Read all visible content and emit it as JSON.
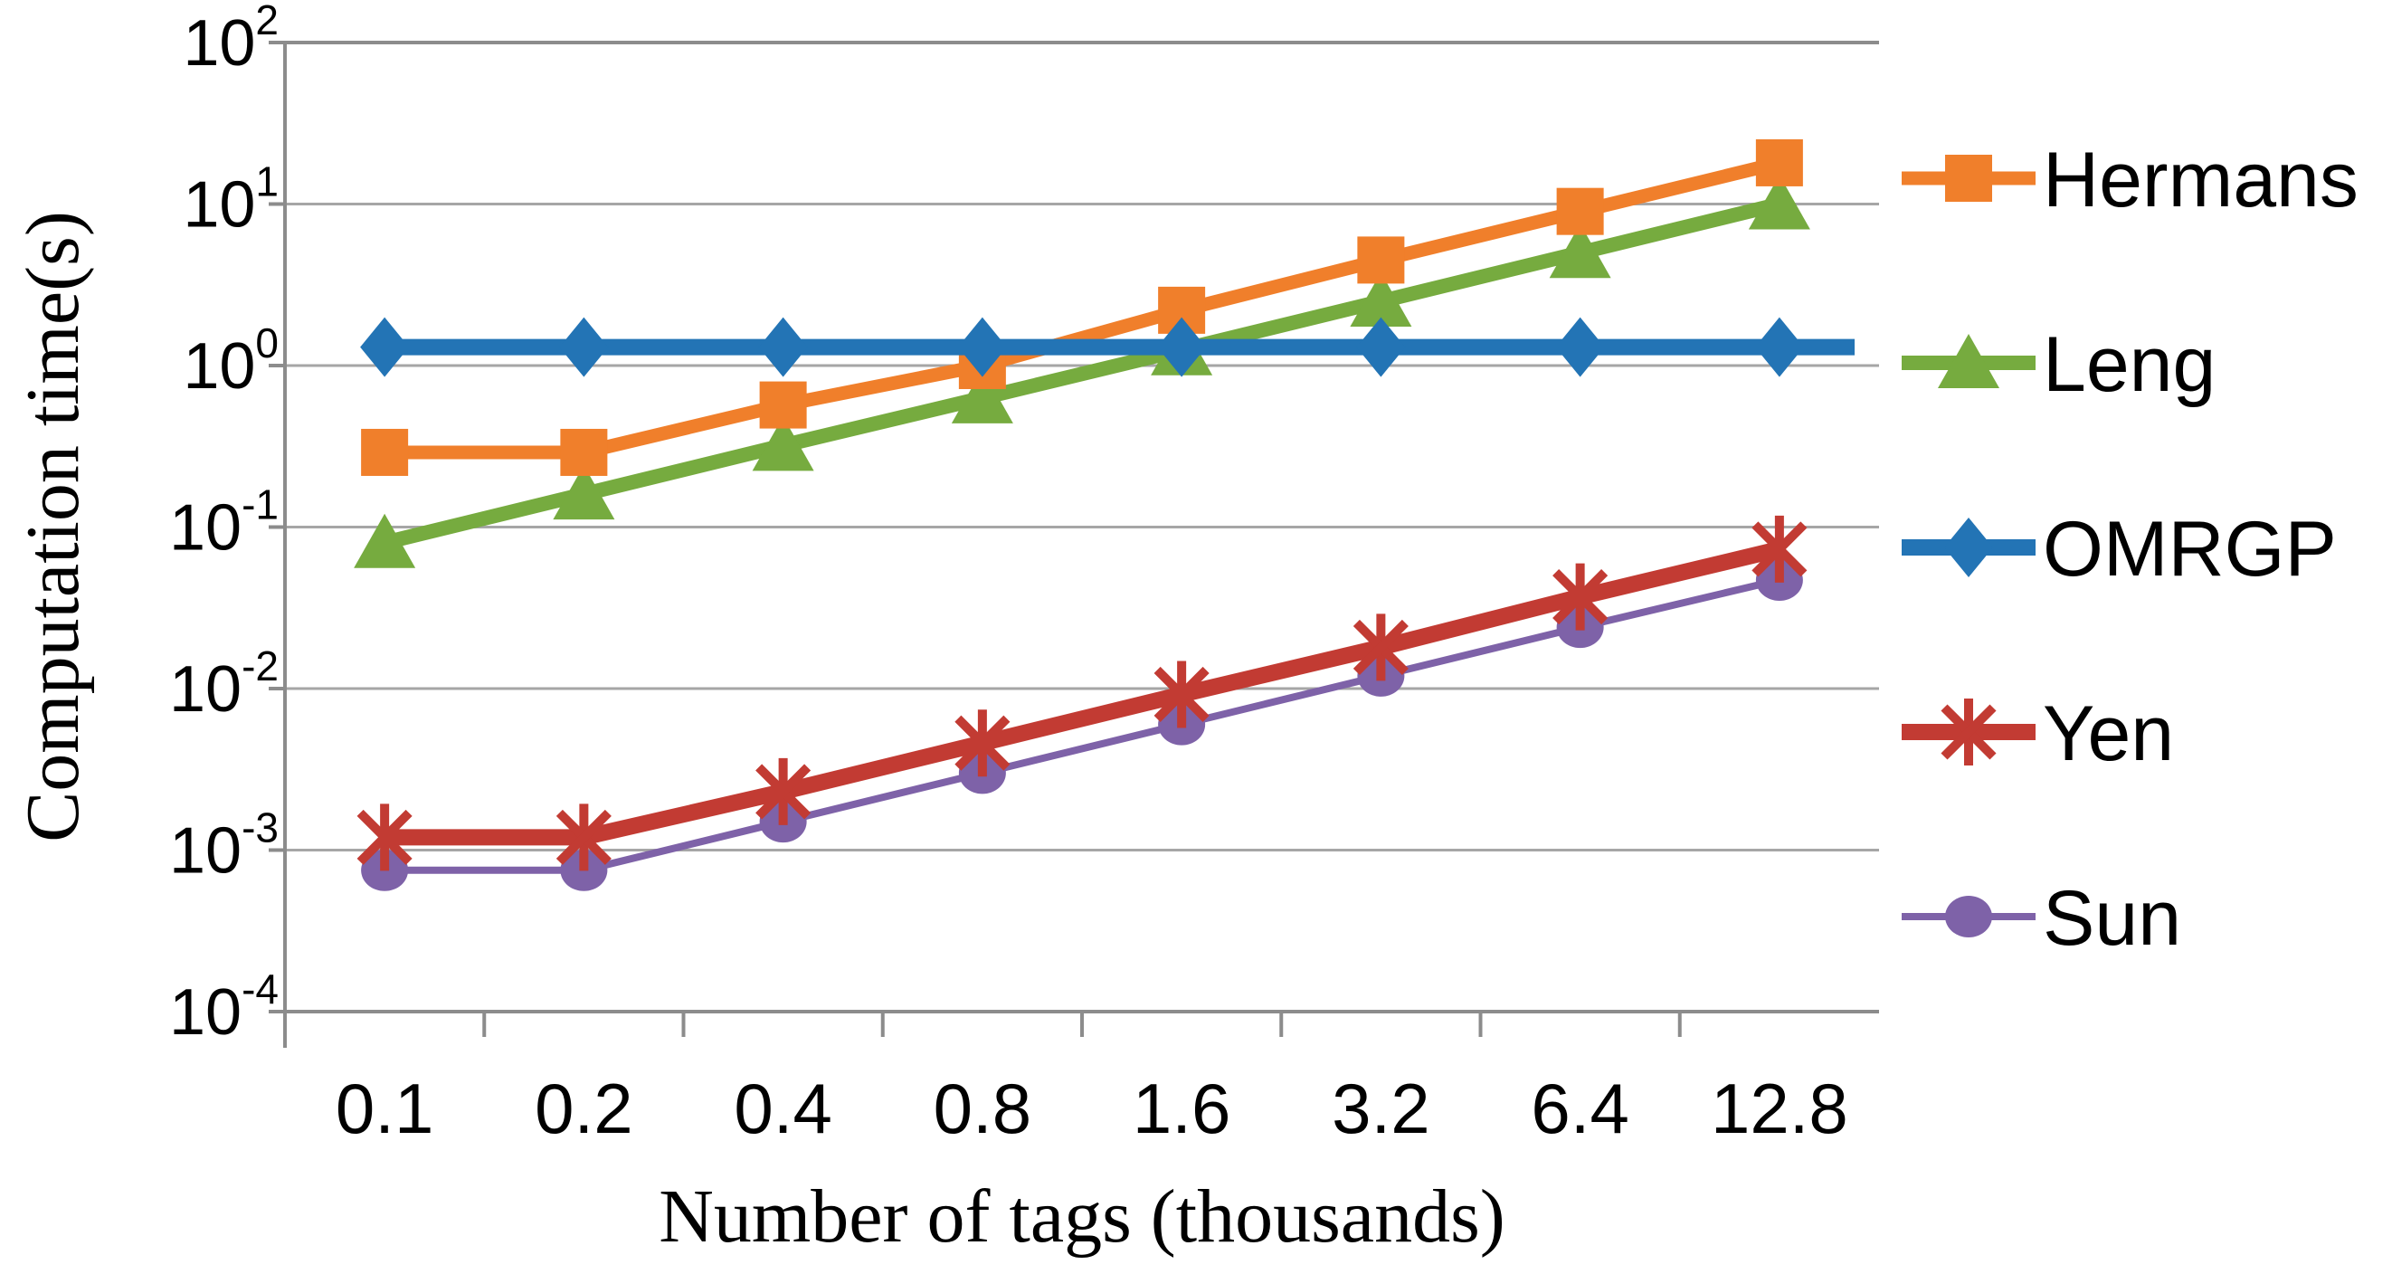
{
  "chart_data": {
    "type": "line",
    "title": "",
    "xlabel": "Number of tags (thousands)",
    "ylabel": "Computation time(s)",
    "x_scale": "category",
    "y_scale": "log10",
    "y_tick_exponents": [
      2,
      1,
      0,
      -1,
      -2,
      -3,
      -4
    ],
    "y_tick_base": "10",
    "ylim": [
      0.0001,
      100
    ],
    "grid": "horizontal",
    "legend_position": "right",
    "categories": [
      "0.1",
      "0.2",
      "0.4",
      "0.8",
      "1.6",
      "3.2",
      "6.4",
      "12.8"
    ],
    "series": [
      {
        "name": "Hermans",
        "marker": "square",
        "color": "#F07F2B",
        "line_width": 15,
        "values": [
          0.29,
          0.29,
          0.57,
          1.0,
          2.2,
          4.5,
          9,
          18
        ]
      },
      {
        "name": "Leng",
        "marker": "triangle",
        "color": "#76AB3F",
        "line_width": 16,
        "values": [
          0.08,
          0.16,
          0.32,
          0.63,
          1.25,
          2.5,
          5,
          10
        ]
      },
      {
        "name": "OMRGP",
        "marker": "diamond",
        "color": "#2374B5",
        "line_width": 18,
        "values": [
          1.3,
          1.3,
          1.3,
          1.3,
          1.3,
          1.3,
          1.3,
          1.3
        ],
        "line_extends_to_plot_edge": true
      },
      {
        "name": "Yen",
        "marker": "asterisk",
        "color": "#C23B33",
        "line_width": 18,
        "values": [
          0.0012,
          0.0012,
          0.0023,
          0.0046,
          0.0092,
          0.018,
          0.037,
          0.073
        ]
      },
      {
        "name": "Sun",
        "marker": "circle",
        "color": "#7E62A8",
        "line_width": 8,
        "values": [
          0.00075,
          0.00075,
          0.0015,
          0.003,
          0.006,
          0.012,
          0.024,
          0.047
        ]
      }
    ],
    "z_order": [
      "Leng",
      "Hermans",
      "OMRGP",
      "Sun",
      "Yen"
    ],
    "colors": {
      "gridline": "#A6A6A6",
      "axis": "#8C8C8C",
      "text": "#000000"
    }
  }
}
